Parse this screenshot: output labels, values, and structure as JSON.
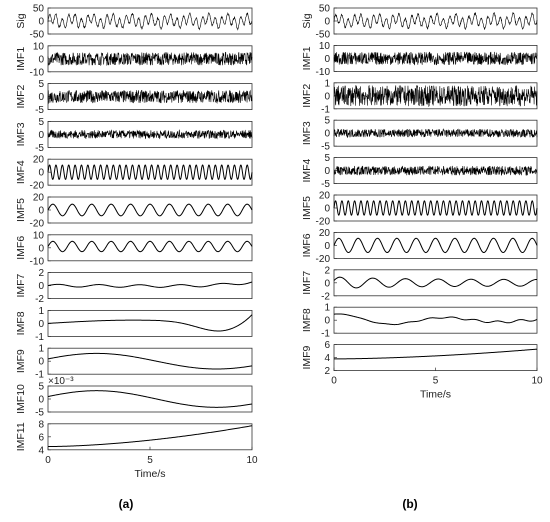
{
  "captions": {
    "a": "(a)",
    "b": "(b)"
  },
  "chart_data": [
    {
      "type": "line",
      "panel": "a",
      "xlabel": "Time/s",
      "xlim": [
        0,
        10
      ],
      "xticks": [
        "0",
        "5",
        "10"
      ],
      "series": [
        {
          "name": "Sig",
          "ylim": [
            -50,
            50
          ],
          "yticks": [
            "50",
            "0",
            "-50"
          ],
          "kind": "sum",
          "amp": 35,
          "cycles": 32
        },
        {
          "name": "IMF1",
          "ylim": [
            -10,
            10
          ],
          "yticks": [
            "10",
            "0",
            "-10"
          ],
          "kind": "noise",
          "amp": 5
        },
        {
          "name": "IMF2",
          "ylim": [
            -5,
            5
          ],
          "yticks": [
            "5",
            "0",
            "-5"
          ],
          "kind": "noise",
          "amp": 2.5
        },
        {
          "name": "IMF3",
          "ylim": [
            -5,
            5
          ],
          "yticks": [
            "5",
            "0",
            "-5"
          ],
          "kind": "noise",
          "amp": 1.6
        },
        {
          "name": "IMF4",
          "ylim": [
            -20,
            20
          ],
          "yticks": [
            "20",
            "0",
            "-20"
          ],
          "kind": "sine",
          "amp": 11,
          "cycles": 32
        },
        {
          "name": "IMF5",
          "ylim": [
            -20,
            20
          ],
          "yticks": [
            "20",
            "0",
            "-20"
          ],
          "kind": "sine",
          "amp": 9,
          "cycles": 10.5
        },
        {
          "name": "IMF6",
          "ylim": [
            -10,
            10
          ],
          "yticks": [
            "10",
            "0",
            "-10"
          ],
          "kind": "sine",
          "amp": 4,
          "cycles": 10.5,
          "offset": 1
        },
        {
          "name": "IMF7",
          "ylim": [
            -2,
            2
          ],
          "yticks": [
            "2",
            "0",
            "-2"
          ],
          "kind": "wavy",
          "amp": 0.4
        },
        {
          "name": "IMF8",
          "ylim": [
            -1,
            1
          ],
          "yticks": [
            "1",
            "0",
            "-1"
          ],
          "kind": "slow",
          "amp": 0.55
        },
        {
          "name": "IMF9",
          "ylim": [
            -1,
            1
          ],
          "yticks": [
            "1",
            "0",
            "-1"
          ],
          "kind": "arch",
          "amp": 0.6
        },
        {
          "name": "IMF10",
          "ylim": [
            -5,
            5
          ],
          "yticks": [
            "5",
            "0",
            "-5"
          ],
          "yexponent": "×10⁻³",
          "kind": "arch",
          "amp": 3.2
        },
        {
          "name": "IMF11",
          "ylim": [
            4,
            8
          ],
          "yticks": [
            "8",
            "6",
            "4"
          ],
          "kind": "trend",
          "start": 4.5,
          "end": 7.7
        }
      ]
    },
    {
      "type": "line",
      "panel": "b",
      "xlabel": "Time/s",
      "xlim": [
        0,
        10
      ],
      "xticks": [
        "0",
        "5",
        "10"
      ],
      "series": [
        {
          "name": "Sig",
          "ylim": [
            -50,
            50
          ],
          "yticks": [
            "50",
            "0",
            "-50"
          ],
          "kind": "sum",
          "amp": 35,
          "cycles": 32
        },
        {
          "name": "IMF1",
          "ylim": [
            -10,
            10
          ],
          "yticks": [
            "10",
            "0",
            "-10"
          ],
          "kind": "noise",
          "amp": 5
        },
        {
          "name": "IMF2",
          "ylim": [
            -1,
            1
          ],
          "yticks": [
            "1",
            "0",
            "-1"
          ],
          "kind": "noise",
          "amp": 0.8
        },
        {
          "name": "IMF3",
          "ylim": [
            -5,
            5
          ],
          "yticks": [
            "5",
            "0",
            "-5"
          ],
          "kind": "noise",
          "amp": 1.6
        },
        {
          "name": "IMF4",
          "ylim": [
            -5,
            5
          ],
          "yticks": [
            "5",
            "0",
            "-5"
          ],
          "kind": "noise",
          "amp": 1.8
        },
        {
          "name": "IMF5",
          "ylim": [
            -20,
            20
          ],
          "yticks": [
            "20",
            "0",
            "-20"
          ],
          "kind": "sine",
          "amp": 11,
          "cycles": 32
        },
        {
          "name": "IMF6",
          "ylim": [
            -20,
            20
          ],
          "yticks": [
            "20",
            "0",
            "-20"
          ],
          "kind": "sine",
          "amp": 11,
          "cycles": 10.5
        },
        {
          "name": "IMF7",
          "ylim": [
            -2,
            2
          ],
          "yticks": [
            "2",
            "0",
            "-2"
          ],
          "kind": "decay",
          "amp": 0.9
        },
        {
          "name": "IMF8",
          "ylim": [
            -1,
            1
          ],
          "yticks": [
            "1",
            "0",
            "-1"
          ],
          "kind": "hump",
          "amp": 0.5
        },
        {
          "name": "IMF9",
          "ylim": [
            2,
            6
          ],
          "yticks": [
            "6",
            "4",
            "2"
          ],
          "kind": "trend",
          "start": 3.8,
          "end": 5.3
        }
      ]
    }
  ]
}
